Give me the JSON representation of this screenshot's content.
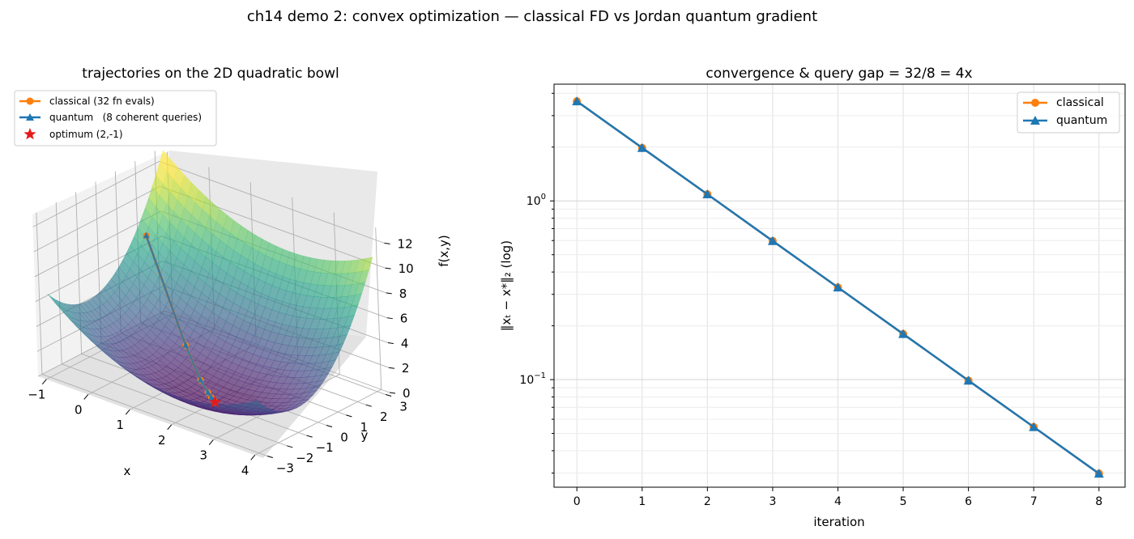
{
  "figure_title": "ch14 demo 2: convex optimization — classical FD vs Jordan quantum gradient",
  "chart_data": [
    {
      "type": "surface3d",
      "title": "trajectories on the 2D quadratic bowl",
      "xlabel": "x",
      "ylabel": "y",
      "zlabel": "f(x,y)",
      "xticks": [
        "−1",
        "0",
        "1",
        "2",
        "3",
        "4"
      ],
      "yticks": [
        "−3",
        "−2",
        "−1",
        "0",
        "1",
        "2",
        "3"
      ],
      "zticks": [
        "0",
        "2",
        "4",
        "6",
        "8",
        "10",
        "12"
      ],
      "xlim": [
        -1.2,
        4.2
      ],
      "ylim": [
        -3.2,
        3.2
      ],
      "zlim": [
        0,
        13
      ],
      "legend_position": "top-left",
      "colormap": "viridis",
      "series": [
        {
          "name": "classical (32 fn evals)",
          "color": "#ff7f0e",
          "marker": "circle",
          "points": [
            [
              -0.6,
              1.2,
              8.4
            ],
            [
              0.8,
              0.1,
              2.2
            ],
            [
              1.4,
              -0.45,
              0.6
            ],
            [
              1.7,
              -0.72,
              0.18
            ],
            [
              1.85,
              -0.86,
              0.05
            ],
            [
              1.93,
              -0.93,
              0.01
            ],
            [
              1.97,
              -0.97,
              0.0
            ],
            [
              1.99,
              -0.99,
              0.0
            ],
            [
              2.0,
              -1.0,
              0.0
            ]
          ]
        },
        {
          "name": "quantum   (8 coherent queries)",
          "color": "#1f77b4",
          "marker": "triangle",
          "points": [
            [
              -0.6,
              1.2,
              8.4
            ],
            [
              0.8,
              0.1,
              2.2
            ],
            [
              1.4,
              -0.45,
              0.6
            ],
            [
              1.7,
              -0.72,
              0.18
            ],
            [
              1.85,
              -0.86,
              0.05
            ],
            [
              1.93,
              -0.93,
              0.01
            ],
            [
              1.97,
              -0.97,
              0.0
            ],
            [
              1.99,
              -0.99,
              0.0
            ],
            [
              2.0,
              -1.0,
              0.0
            ]
          ]
        }
      ],
      "optimum": {
        "name": "optimum (2,-1)",
        "color": "#e41a1c",
        "marker": "star",
        "point": [
          2,
          -1,
          0
        ]
      }
    },
    {
      "type": "line",
      "title": "convergence & query gap = 32/8 = 4x",
      "xlabel": "iteration",
      "ylabel": "‖xₜ − x*‖₂ (log)",
      "yscale": "log",
      "x": [
        0,
        1,
        2,
        3,
        4,
        5,
        6,
        7,
        8
      ],
      "xlim": [
        -0.35,
        8.4
      ],
      "ylim": [
        0.025,
        4.5
      ],
      "xticks": [
        "0",
        "1",
        "2",
        "3",
        "4",
        "5",
        "6",
        "7",
        "8"
      ],
      "yticks": [
        {
          "label_base": "10",
          "label_exp": "0",
          "value": 1
        },
        {
          "label_base": "10",
          "label_exp": "−1",
          "value": 0.1
        }
      ],
      "grid": true,
      "legend_position": "top-right",
      "series": [
        {
          "name": "classical",
          "color": "#ff7f0e",
          "marker": "circle",
          "values": [
            3.61,
            1.98,
            1.09,
            0.597,
            0.328,
            0.18,
            0.0988,
            0.0543,
            0.0298
          ]
        },
        {
          "name": "quantum",
          "color": "#1f77b4",
          "marker": "triangle",
          "values": [
            3.61,
            1.98,
            1.09,
            0.597,
            0.328,
            0.18,
            0.0988,
            0.0543,
            0.0298
          ]
        }
      ]
    }
  ]
}
